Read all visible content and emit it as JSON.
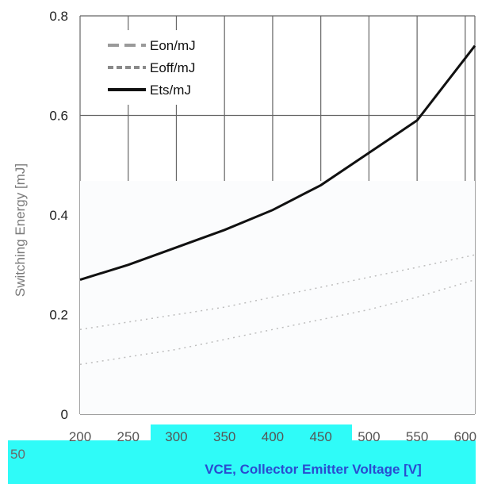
{
  "chart_data": {
    "type": "line",
    "x_ticks": [
      "200",
      "250",
      "300",
      "350",
      "400",
      "450",
      "500",
      "550",
      "600"
    ],
    "y_ticks": [
      "0",
      "0.2",
      "0.4",
      "0.6",
      "0.8"
    ],
    "xlim": [
      200,
      610
    ],
    "ylim": [
      0,
      0.8
    ],
    "xlabel": "VCE, Collector Emitter Voltage [V]",
    "ylabel": "Switching Energy [mJ]",
    "stray_label": "50",
    "grid": true,
    "legend_position": "top-left",
    "series": [
      {
        "name": "Eon/mJ",
        "style": "dashed",
        "color": "#bdbdbd",
        "x": [
          200,
          250,
          300,
          350,
          400,
          450,
          500,
          550,
          610
        ],
        "y": [
          0.17,
          0.185,
          0.2,
          0.215,
          0.235,
          0.255,
          0.275,
          0.295,
          0.32
        ]
      },
      {
        "name": "Eoff/mJ",
        "style": "dashed",
        "color": "#bdbdbd",
        "x": [
          200,
          250,
          300,
          350,
          400,
          450,
          500,
          550,
          610
        ],
        "y": [
          0.1,
          0.115,
          0.13,
          0.15,
          0.17,
          0.19,
          0.21,
          0.235,
          0.27
        ]
      },
      {
        "name": "Ets/mJ",
        "style": "solid",
        "color": "#111111",
        "x": [
          200,
          250,
          300,
          350,
          400,
          450,
          500,
          550,
          610
        ],
        "y": [
          0.27,
          0.3,
          0.335,
          0.37,
          0.41,
          0.46,
          0.525,
          0.59,
          0.74
        ]
      }
    ]
  }
}
